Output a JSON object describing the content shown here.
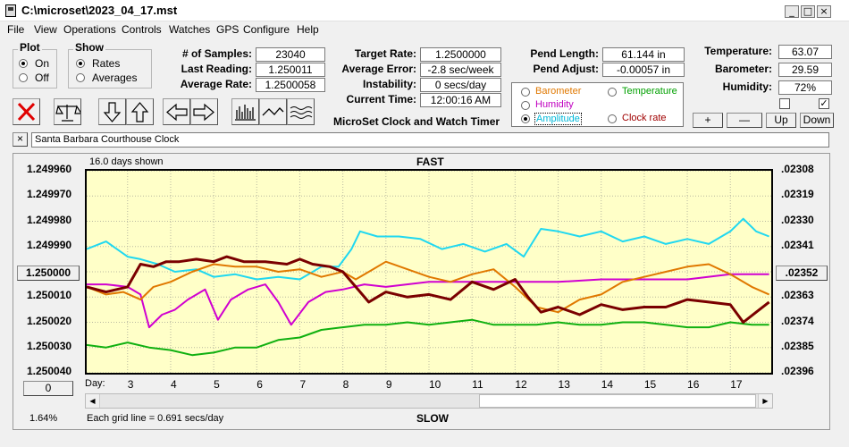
{
  "window": {
    "title": "C:\\microset\\2023_04_17.mst"
  },
  "menu": [
    "File",
    "View",
    "Operations",
    "Controls",
    "Watches",
    "GPS",
    "Configure",
    "Help"
  ],
  "plot_group": {
    "title": "Plot",
    "options": [
      "On",
      "Off"
    ],
    "selected": "On"
  },
  "show_group": {
    "title": "Show",
    "options": [
      "Rates",
      "Averages"
    ],
    "selected": "Rates"
  },
  "stats": {
    "samples_label": "# of Samples:",
    "samples": "23040",
    "last_reading_label": "Last Reading:",
    "last_reading": "1.250011",
    "average_rate_label": "Average Rate:",
    "average_rate": "1.2500058",
    "target_rate_label": "Target Rate:",
    "target_rate": "1.2500000",
    "average_error_label": "Average Error:",
    "average_error": "-2.8 sec/week",
    "instability_label": "Instability:",
    "instability": "0 secs/day",
    "current_time_label": "Current Time:",
    "current_time": "12:00:16 AM",
    "pend_length_label": "Pend Length:",
    "pend_length": "61.144 in",
    "pend_adjust_label": "Pend Adjust:",
    "pend_adjust": "-0.00057 in",
    "temperature_label": "Temperature:",
    "temperature": "63.07",
    "barometer_label": "Barometer:",
    "barometer": "29.59",
    "humidity_label": "Humidity:",
    "humidity": "72%"
  },
  "app_caption": "MicroSet Clock and Watch Timer",
  "series_selector": {
    "items": [
      {
        "label": "Barometer",
        "color": "#e07800"
      },
      {
        "label": "Temperature",
        "color": "#00a000"
      },
      {
        "label": "Humidity",
        "color": "#c000c0"
      },
      {
        "label": "Amplitude",
        "color": "#00b8d8"
      },
      {
        "label": "Clock rate",
        "color": "#a00000"
      }
    ],
    "selected": "Amplitude"
  },
  "adjust_buttons": [
    "+",
    "—",
    "Up",
    "Down"
  ],
  "checkboxes": [
    false,
    true
  ],
  "watch_name": "Santa Barbara Courthouse Clock",
  "graph": {
    "days_shown": "16.0 days shown",
    "top_label": "FAST",
    "bottom_label": "SLOW",
    "grid_note": "Each grid line = 0.691 secs/day",
    "percent": "1.64%",
    "day_label": "Day:",
    "center_button": "1.250000",
    "right_center_button": ".02352",
    "zero_button": "0",
    "left_ticks": [
      "1.249960",
      "1.249970",
      "1.249980",
      "1.249990",
      "1.250000",
      "1.250010",
      "1.250020",
      "1.250030",
      "1.250040"
    ],
    "right_ticks": [
      ".02308",
      ".02319",
      ".02330",
      ".02341",
      ".02352",
      ".02363",
      ".02374",
      ".02385",
      ".02396"
    ],
    "day_ticks": [
      "3",
      "4",
      "5",
      "6",
      "7",
      "8",
      "9",
      "10",
      "11",
      "12",
      "13",
      "14",
      "15",
      "16",
      "17"
    ]
  },
  "chart_data": {
    "type": "line",
    "x_unit": "day",
    "x_range": [
      2.05,
      17.95
    ],
    "y_unit": "rate",
    "y_range": [
      1.24996,
      1.25004
    ],
    "series": [
      {
        "name": "Clock rate",
        "color": "#7a0000",
        "x": [
          2.05,
          2.5,
          3.0,
          3.3,
          3.6,
          3.9,
          4.2,
          4.6,
          5.0,
          5.3,
          5.7,
          6.2,
          6.7,
          7.0,
          7.3,
          7.7,
          8.0,
          8.3,
          8.6,
          9.0,
          9.5,
          10.0,
          10.5,
          11.0,
          11.5,
          12.0,
          12.3,
          12.6,
          13.0,
          13.5,
          14.0,
          14.5,
          15.0,
          15.5,
          16.0,
          16.5,
          17.0,
          17.3,
          17.6,
          17.9
        ],
        "y": [
          1.250006,
          1.250008,
          1.250006,
          1.249997,
          1.249998,
          1.249996,
          1.249996,
          1.249995,
          1.249996,
          1.249994,
          1.249996,
          1.249996,
          1.249997,
          1.249995,
          1.249997,
          1.249998,
          1.25,
          1.250006,
          1.250012,
          1.250008,
          1.25001,
          1.250009,
          1.250011,
          1.250004,
          1.250007,
          1.250003,
          1.25001,
          1.250016,
          1.250014,
          1.250017,
          1.250013,
          1.250015,
          1.250014,
          1.250014,
          1.250011,
          1.250012,
          1.250013,
          1.25002,
          1.250016,
          1.250012
        ]
      },
      {
        "name": "Barometer",
        "color": "#e07800",
        "x": [
          2.05,
          2.5,
          2.9,
          3.3,
          3.6,
          4.0,
          4.5,
          5.0,
          5.5,
          6.0,
          6.5,
          7.0,
          7.5,
          8.0,
          8.3,
          8.7,
          9.0,
          9.5,
          10.0,
          10.5,
          11.0,
          11.5,
          12.0,
          12.5,
          13.0,
          13.5,
          14.0,
          14.5,
          15.0,
          15.5,
          16.0,
          16.5,
          17.0,
          17.5,
          17.9
        ],
        "y": [
          1.250006,
          1.250009,
          1.250008,
          1.250011,
          1.250006,
          1.250004,
          1.25,
          1.249997,
          1.249998,
          1.249998,
          1.25,
          1.249999,
          1.250002,
          1.25,
          1.250003,
          1.249999,
          1.249996,
          1.249999,
          1.250002,
          1.250004,
          1.250001,
          1.249999,
          1.250006,
          1.250014,
          1.250016,
          1.250011,
          1.250009,
          1.250004,
          1.250002,
          1.25,
          1.249998,
          1.249997,
          1.250001,
          1.250006,
          1.250009
        ]
      },
      {
        "name": "Humidity",
        "color": "#d000d0",
        "x": [
          2.05,
          2.5,
          3.0,
          3.3,
          3.5,
          3.8,
          4.1,
          4.4,
          4.8,
          5.1,
          5.4,
          5.8,
          6.2,
          6.5,
          6.8,
          7.2,
          7.6,
          8.0,
          8.5,
          9.0,
          10.0,
          11.0,
          12.0,
          13.0,
          14.0,
          15.0,
          16.0,
          17.0,
          17.9
        ],
        "y": [
          1.250005,
          1.250005,
          1.250006,
          1.250009,
          1.250022,
          1.250017,
          1.250015,
          1.250011,
          1.250007,
          1.250019,
          1.250011,
          1.250007,
          1.250005,
          1.250012,
          1.250021,
          1.250012,
          1.250008,
          1.250007,
          1.250005,
          1.250006,
          1.250004,
          1.250004,
          1.250004,
          1.250004,
          1.250003,
          1.250003,
          1.250003,
          1.250001,
          1.250001
        ]
      },
      {
        "name": "Amplitude",
        "color": "#20d8f0",
        "x": [
          2.05,
          2.5,
          3.0,
          3.3,
          3.7,
          4.1,
          4.6,
          5.0,
          5.5,
          6.0,
          6.5,
          7.0,
          7.5,
          7.9,
          8.2,
          8.4,
          8.8,
          9.3,
          9.8,
          10.3,
          10.8,
          11.3,
          11.8,
          12.2,
          12.6,
          13.0,
          13.5,
          14.0,
          14.5,
          15.0,
          15.5,
          16.0,
          16.5,
          17.0,
          17.3,
          17.6,
          17.9
        ],
        "y": [
          1.249991,
          1.249988,
          1.249994,
          1.249995,
          1.249997,
          1.25,
          1.249999,
          1.250002,
          1.250001,
          1.250003,
          1.250002,
          1.250003,
          1.249998,
          1.249998,
          1.249991,
          1.249984,
          1.249986,
          1.249986,
          1.249987,
          1.249991,
          1.249989,
          1.249992,
          1.249989,
          1.249994,
          1.249983,
          1.249984,
          1.249986,
          1.249984,
          1.249988,
          1.249986,
          1.249989,
          1.249987,
          1.249989,
          1.249984,
          1.249979,
          1.249984,
          1.249986
        ]
      },
      {
        "name": "Temperature",
        "color": "#10b010",
        "x": [
          2.05,
          2.5,
          3.0,
          3.5,
          4.0,
          4.5,
          5.0,
          5.5,
          6.0,
          6.5,
          7.0,
          7.5,
          8.0,
          8.5,
          9.0,
          9.5,
          10.0,
          10.5,
          11.0,
          11.5,
          12.0,
          12.5,
          13.0,
          13.5,
          14.0,
          14.5,
          15.0,
          15.5,
          16.0,
          16.5,
          17.0,
          17.5,
          17.9
        ],
        "y": [
          1.250029,
          1.25003,
          1.250028,
          1.25003,
          1.250031,
          1.250033,
          1.250032,
          1.25003,
          1.25003,
          1.250027,
          1.250026,
          1.250023,
          1.250022,
          1.250021,
          1.250021,
          1.25002,
          1.250021,
          1.25002,
          1.250019,
          1.250021,
          1.250021,
          1.250021,
          1.25002,
          1.250021,
          1.250021,
          1.25002,
          1.25002,
          1.250021,
          1.250022,
          1.250022,
          1.25002,
          1.250021,
          1.250021
        ]
      }
    ]
  }
}
